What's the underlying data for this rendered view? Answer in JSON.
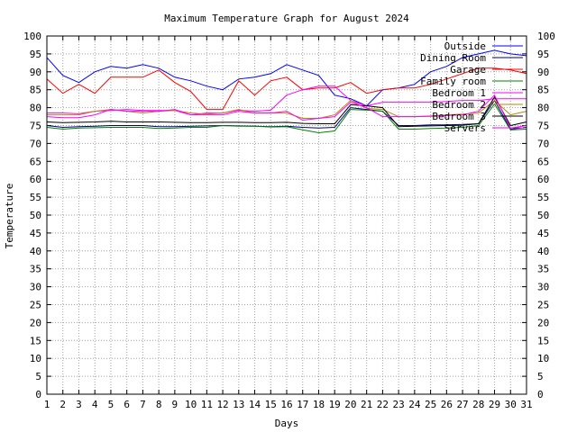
{
  "chart_data": {
    "type": "line",
    "title": "Maximum Temperature Graph for August 2024",
    "xlabel": "Days",
    "ylabel": "Temperature",
    "xlim": [
      1,
      31
    ],
    "ylim": [
      0,
      100
    ],
    "x": [
      1,
      2,
      3,
      4,
      5,
      6,
      7,
      8,
      9,
      10,
      11,
      12,
      13,
      14,
      15,
      16,
      17,
      18,
      19,
      20,
      21,
      22,
      23,
      24,
      25,
      26,
      27,
      28,
      29,
      30,
      31
    ],
    "grid": true,
    "legend_position": "top-right",
    "series": [
      {
        "name": "Outside",
        "color": "#0000ff",
        "values": [
          94,
          89,
          87,
          90,
          91.5,
          91,
          92,
          91,
          88.5,
          87.5,
          86,
          85,
          88,
          88.5,
          89.5,
          92,
          90.5,
          89,
          83.5,
          82.5,
          80.5,
          85,
          85.5,
          86.5,
          90,
          91.5,
          94,
          95,
          96,
          95,
          94.5
        ]
      },
      {
        "name": "Dining Room",
        "color": "#000080",
        "values": [
          75,
          74.5,
          74.7,
          74.8,
          75,
          75,
          75,
          74.7,
          74.7,
          74.8,
          74.9,
          75,
          74.9,
          74.8,
          74.7,
          74.8,
          74.5,
          74.3,
          74.5,
          80,
          79.5,
          79,
          75,
          75,
          75.2,
          75.2,
          75.3,
          75.5,
          82,
          74,
          74.5
        ]
      },
      {
        "name": "Garage",
        "color": "#ff0000",
        "values": [
          88,
          84,
          86.5,
          84,
          88.5,
          88.5,
          88.5,
          90.5,
          87,
          84.5,
          79.5,
          79.5,
          87.5,
          83.5,
          87.5,
          88.5,
          85,
          85.5,
          85.5,
          87,
          84,
          85,
          85.5,
          85.5,
          86.5,
          88,
          89.5,
          91,
          91,
          90.5,
          89.5
        ]
      },
      {
        "name": "Family room",
        "color": "#008000",
        "values": [
          74.5,
          74,
          74.3,
          74.4,
          74.5,
          74.5,
          74.5,
          74.2,
          74.3,
          74.5,
          74.5,
          75,
          74.8,
          74.8,
          74.6,
          74.7,
          73.8,
          73,
          73.5,
          79.5,
          79.3,
          79,
          74,
          74,
          74.2,
          74.3,
          74.5,
          75,
          81,
          73.8,
          74
        ]
      },
      {
        "name": "Bedroom 1",
        "color": "#ff00ff",
        "values": [
          78.5,
          78.5,
          78.3,
          79,
          79.2,
          79.5,
          79.2,
          79.2,
          79.2,
          78,
          78.5,
          78.5,
          79.3,
          79,
          79.3,
          83.5,
          85,
          86,
          86,
          82,
          80.5,
          81.5,
          81.5,
          81.5,
          81.5,
          81.7,
          82,
          82,
          82.5,
          82.5,
          82.5
        ]
      },
      {
        "name": "Bedroom 2",
        "color": "#b8860b",
        "values": [
          78,
          78,
          78,
          79,
          79.5,
          79,
          78.5,
          79,
          79.2,
          78.5,
          78.2,
          78.5,
          79.5,
          78.5,
          78.5,
          78.5,
          77,
          77,
          78,
          82,
          79.8,
          79.5,
          77.5,
          77.5,
          77.7,
          78,
          78.2,
          78.5,
          82,
          78,
          79
        ]
      },
      {
        "name": "Bedroom 3",
        "color": "#000000",
        "values": [
          76,
          75.8,
          75.9,
          76,
          76.2,
          76,
          76,
          76,
          75.9,
          75.8,
          75.8,
          75.9,
          75.9,
          75.8,
          75.8,
          75.9,
          75.6,
          75.5,
          75.5,
          80.8,
          80.5,
          80,
          74.7,
          74.8,
          74.9,
          75,
          75.1,
          75.5,
          83,
          75,
          76
        ]
      },
      {
        "name": "Servers",
        "color": "#ff00ff",
        "values": [
          77.5,
          77.2,
          77.2,
          78,
          79.5,
          79,
          79,
          79,
          79.5,
          78,
          78,
          78,
          79,
          78.5,
          78.5,
          79,
          76.5,
          77,
          77.5,
          81.5,
          80,
          77.5,
          77.5,
          77.5,
          77.6,
          77.8,
          78,
          79,
          83.5,
          74.3,
          75
        ]
      }
    ]
  }
}
